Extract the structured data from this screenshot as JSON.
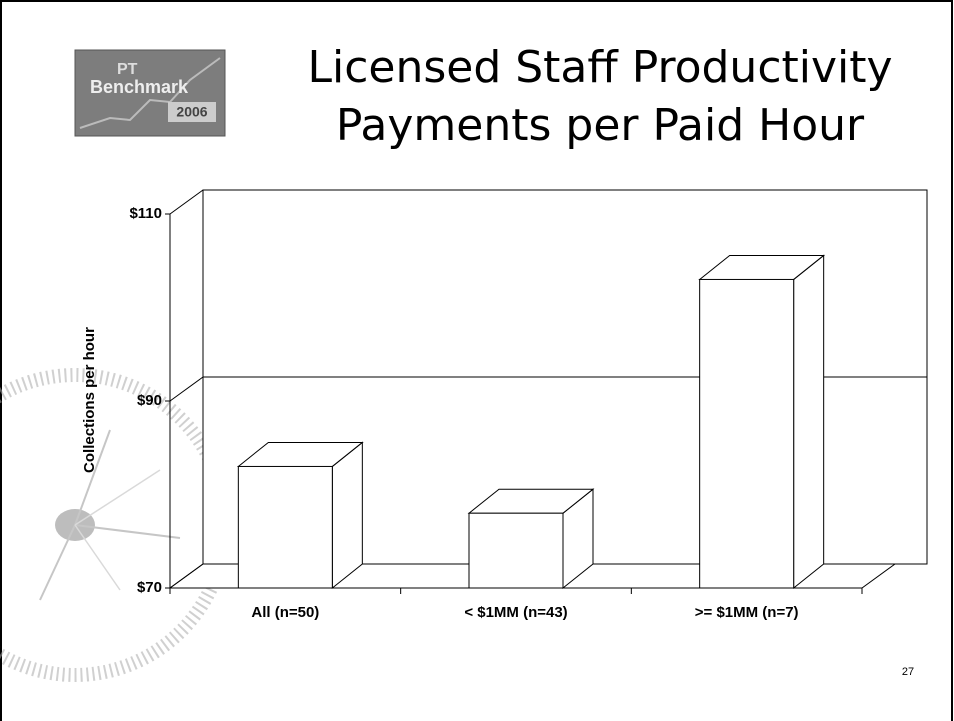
{
  "logo": {
    "line1": "PT",
    "line2": "Benchmark",
    "year": "2006"
  },
  "page_number": "27",
  "chart_data": {
    "type": "bar3d",
    "title": "Licensed Staff Productivity",
    "subtitle": "Payments per Paid Hour",
    "y_label": "Collections per hour",
    "categories": [
      "All (n=50)",
      "< $1MM (n=43)",
      ">= $1MM (n=7)"
    ],
    "values": [
      83,
      78,
      103
    ],
    "color": "#ffffff",
    "ylim": [
      70,
      110
    ],
    "yticks": [
      {
        "value": 70,
        "label": "$70"
      },
      {
        "value": 90,
        "label": "$90"
      },
      {
        "value": 110,
        "label": "$110"
      }
    ],
    "grid": true
  }
}
